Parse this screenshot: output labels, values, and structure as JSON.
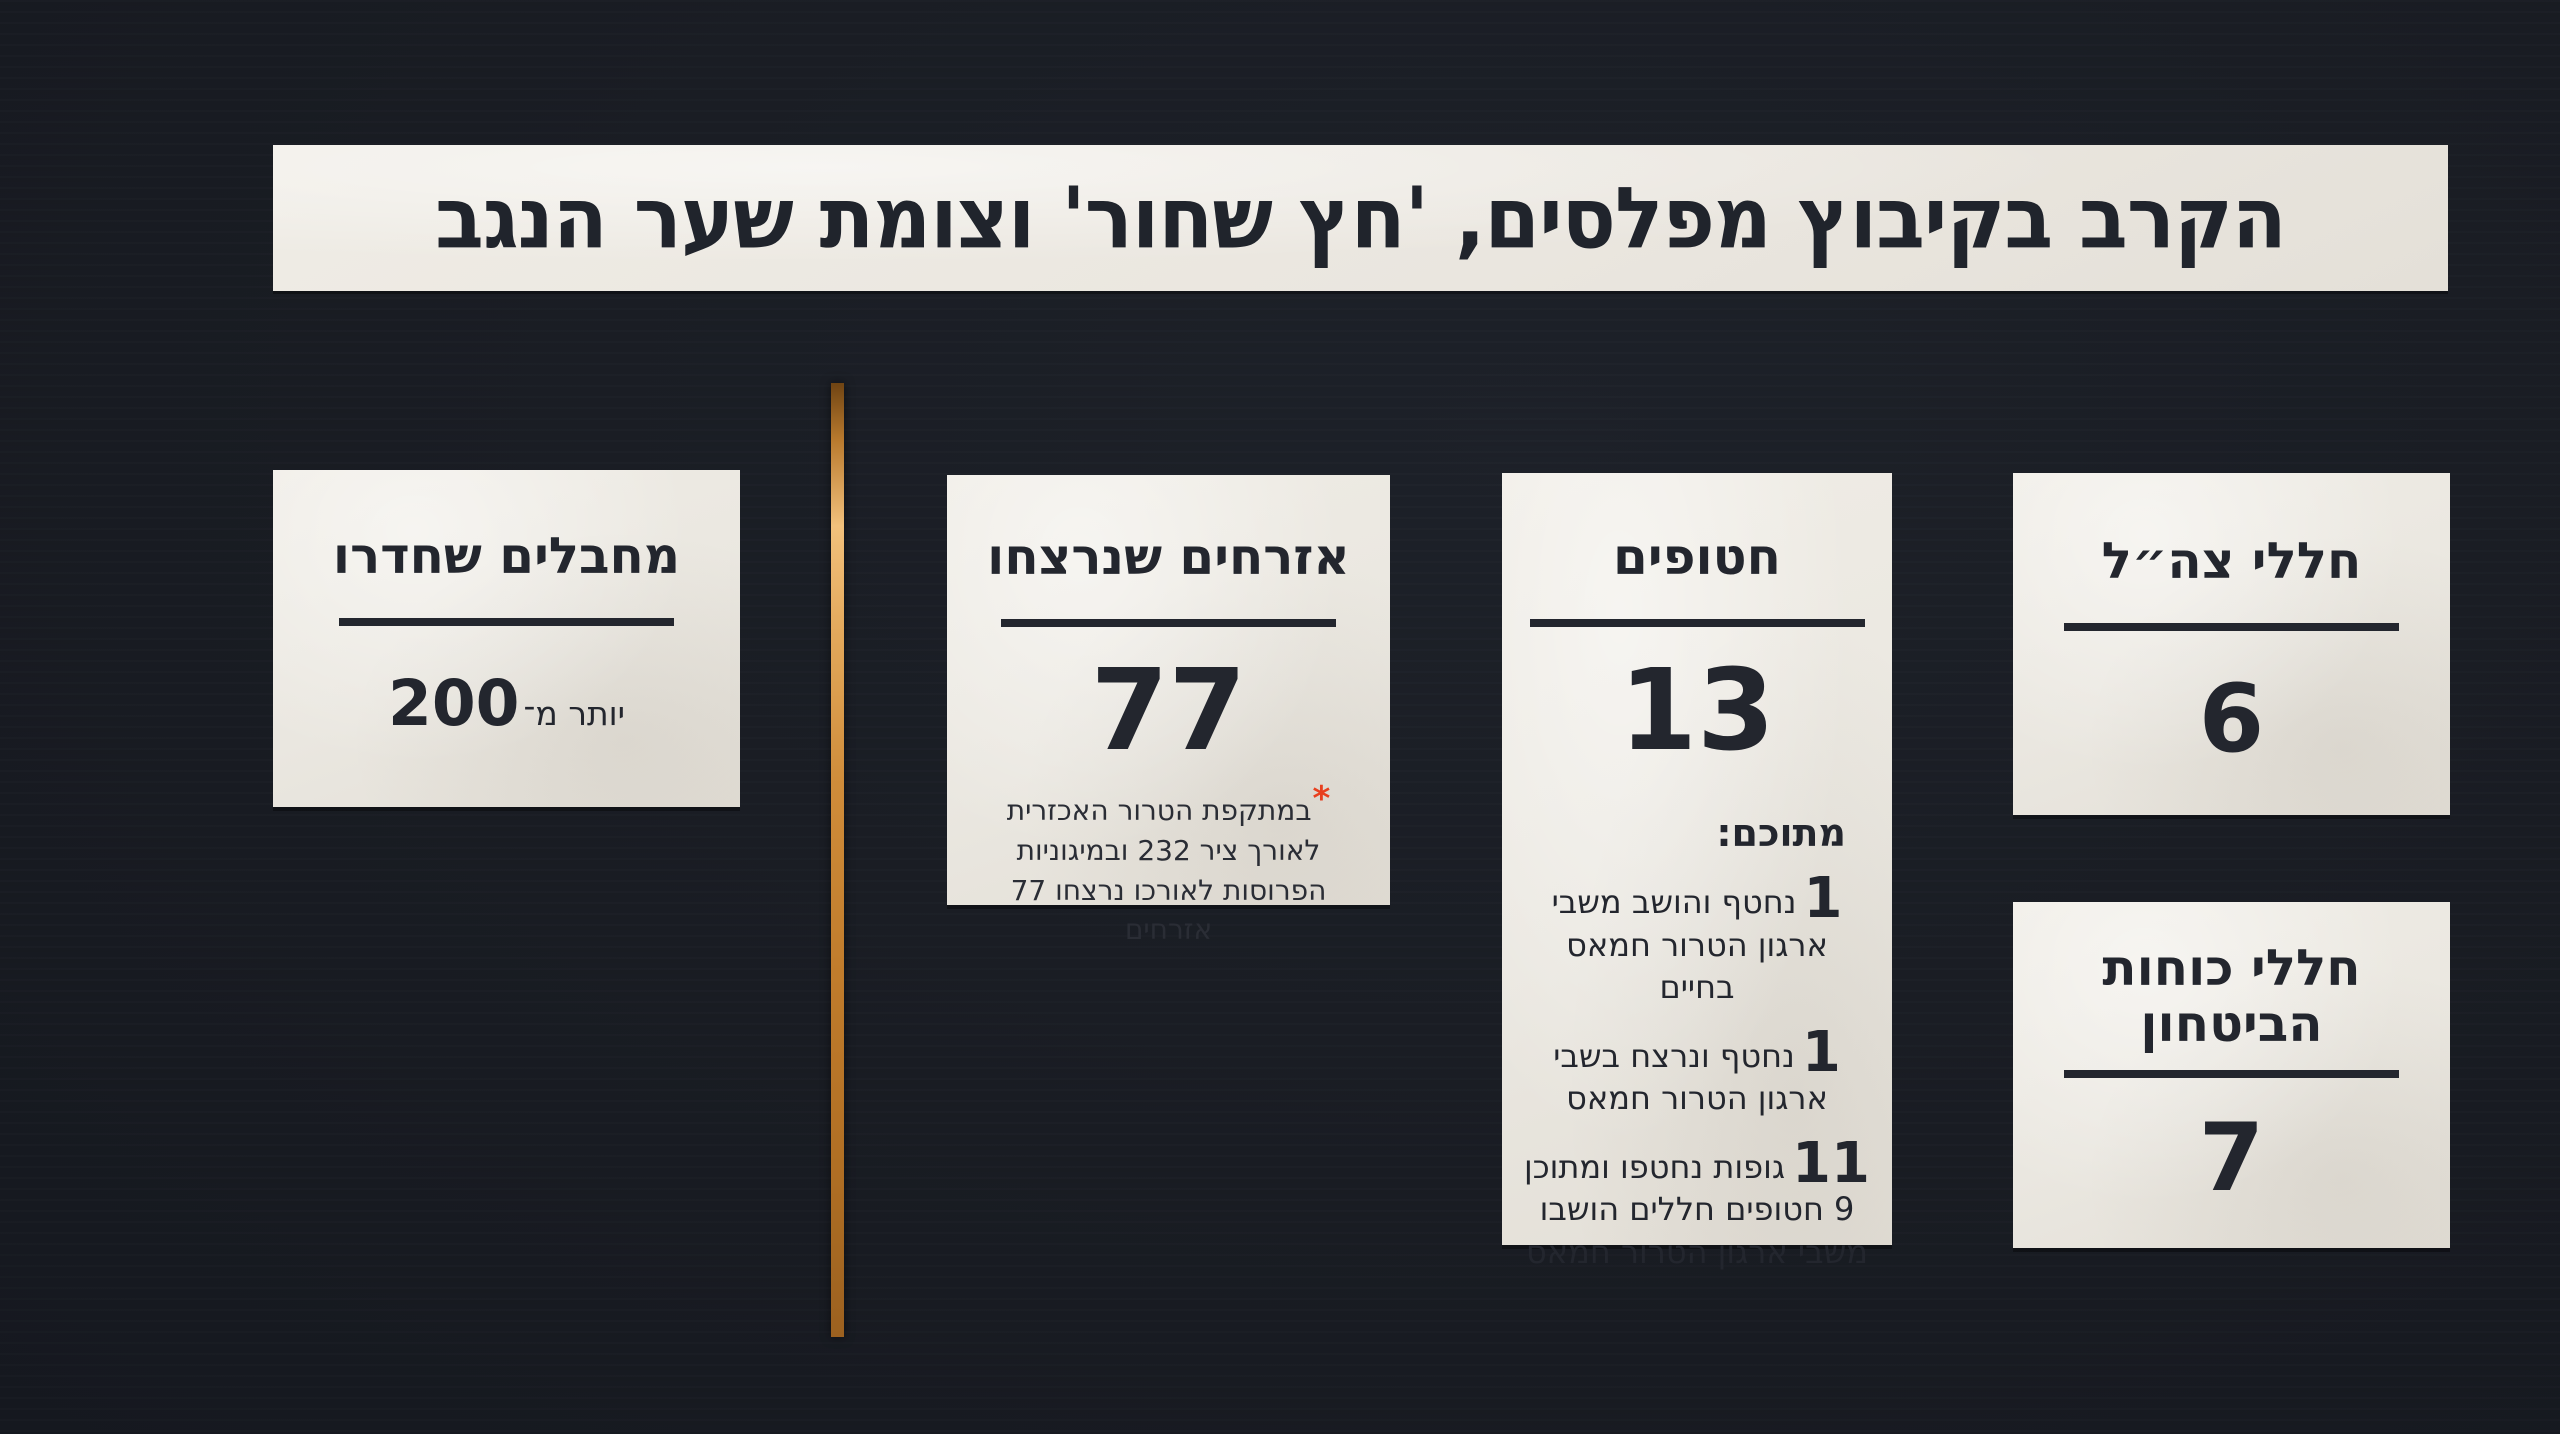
{
  "page": {
    "title": "הקרב בקיבוץ מפלסים, 'חץ שחור' וצומת שער הנגב"
  },
  "cards": {
    "infiltrators": {
      "heading": "מחבלים שחדרו",
      "value_prefix": "יותר מ־",
      "value": "200"
    },
    "civilians_murdered": {
      "heading": "אזרחים שנרצחו",
      "value": "77",
      "footnote_marker": "*",
      "footnote": "במתקפת הטרור האכזרית לאורך ציר 232 ובמיגוניות הפרוסות לאורכו נרצחו 77 אזרחים"
    },
    "hostages": {
      "heading": "חטופים",
      "value": "13",
      "breakdown_label": "מתוכם:",
      "items": [
        {
          "number": "1",
          "text": "נחטף והושב משבי ארגון הטרור חמאס בחיים"
        },
        {
          "number": "1",
          "text": "נחטף ונרצח בשבי ארגון הטרור חמאס"
        },
        {
          "number": "11",
          "text": "גופות נחטפו ומתוכן 9 חטופים חללים הושבו משבי ארגון הטרור חמאס"
        }
      ]
    },
    "idf_fallen": {
      "heading": "חללי צה״ל",
      "value": "6"
    },
    "security_forces_fallen": {
      "heading": "חללי כוחות הביטחון",
      "value": "7"
    }
  },
  "colors": {
    "background": "#191c23",
    "card_paper": "#ece9e2",
    "text": "#23262e",
    "divider_gold": "#cf8c3a",
    "footnote_marker_red": "#e8401f"
  }
}
